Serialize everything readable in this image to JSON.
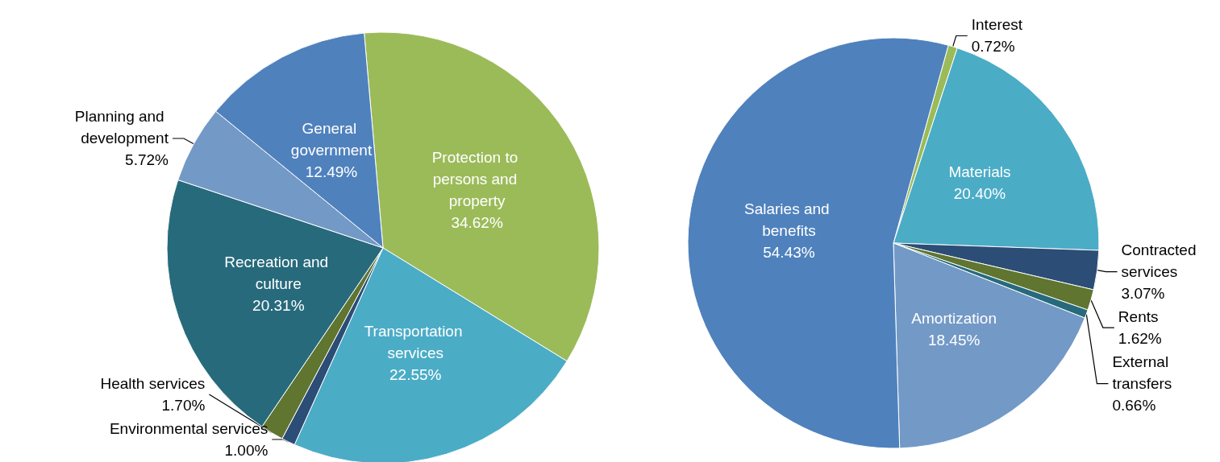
{
  "chart_data": [
    {
      "type": "pie",
      "categories": [
        "Protection to persons and property",
        "Transportation services",
        "Environmental services",
        "Health services",
        "Recreation and culture",
        "Planning and development",
        "General government"
      ],
      "values": [
        34.62,
        22.55,
        1.0,
        1.7,
        20.31,
        5.72,
        12.49
      ],
      "value_labels": [
        "34.62%",
        "22.55%",
        "1.00%",
        "1.70%",
        "20.31%",
        "5.72%",
        "12.49%"
      ],
      "colors": [
        "#9bbb59",
        "#4bacc6",
        "#2c4d75",
        "#5f7530",
        "#276a7c",
        "#7399c6",
        "#4f81bd"
      ]
    },
    {
      "type": "pie",
      "categories": [
        "Interest",
        "Materials",
        "Contracted services",
        "Rents",
        "External transfers",
        "Amortization",
        "Salaries and benefits"
      ],
      "values": [
        0.72,
        20.4,
        3.07,
        1.62,
        0.66,
        18.45,
        54.43
      ],
      "value_labels": [
        "0.72%",
        "20.40%",
        "3.07%",
        "1.62%",
        "0.66%",
        "18.45%",
        "54.43%"
      ],
      "colors": [
        "#9bbb59",
        "#4bacc6",
        "#2c4d75",
        "#5f7530",
        "#276a7c",
        "#7399c6",
        "#4f81bd"
      ]
    }
  ]
}
